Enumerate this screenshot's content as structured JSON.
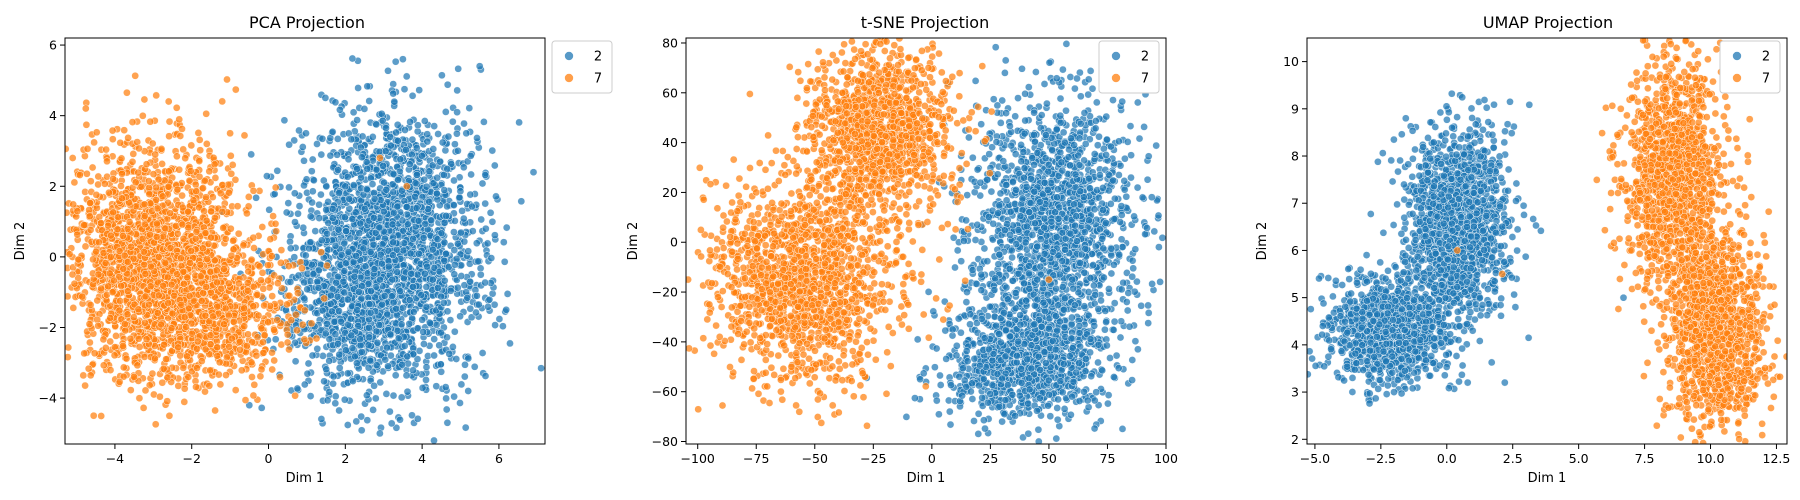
{
  "colors": {
    "series_2": "#1f77b4",
    "series_7": "#ff7f0e"
  },
  "chart_data": [
    {
      "type": "scatter",
      "title": "PCA Projection",
      "xlabel": "Dim 1",
      "ylabel": "Dim 2",
      "xlim": [
        -5.3,
        7.2
      ],
      "ylim": [
        -5.3,
        6.2
      ],
      "xticks": [
        -4,
        -2,
        0,
        2,
        4,
        6
      ],
      "yticks": [
        -4,
        -2,
        0,
        2,
        4,
        6
      ],
      "legend": {
        "position": "outside-top-right",
        "entries": [
          "2",
          "7"
        ]
      },
      "grid": false,
      "series": [
        {
          "name": "2",
          "color": "#1f77b4",
          "approx_count": 5000,
          "clusters": [
            {
              "center": [
                3.2,
                0.2
              ],
              "spread": [
                1.15,
                1.9
              ],
              "weight": 0.85
            },
            {
              "center": [
                1.8,
                -1.5
              ],
              "spread": [
                0.8,
                1.2
              ],
              "weight": 0.15
            }
          ],
          "sample_points": [
            [
              3.5,
              5.6
            ],
            [
              5.5,
              5.4
            ],
            [
              6.9,
              2.4
            ],
            [
              2.9,
              -5.0
            ],
            [
              -0.5,
              -4.2
            ],
            [
              4.4,
              0.5
            ],
            [
              2.0,
              2.0
            ],
            [
              5.2,
              -3.8
            ]
          ]
        },
        {
          "name": "7",
          "color": "#ff7f0e",
          "approx_count": 5000,
          "clusters": [
            {
              "center": [
                -3.0,
                0.0
              ],
              "spread": [
                1.1,
                1.6
              ],
              "weight": 0.75
            },
            {
              "center": [
                -1.3,
                -1.6
              ],
              "spread": [
                0.9,
                1.0
              ],
              "weight": 0.25
            }
          ],
          "sample_points": [
            [
              -5.1,
              2.8
            ],
            [
              -2.6,
              4.4
            ],
            [
              -3.5,
              -3.4
            ],
            [
              0.5,
              -2.2
            ],
            [
              -4.8,
              0.9
            ],
            [
              2.9,
              2.8
            ],
            [
              3.6,
              2.0
            ],
            [
              -1.0,
              3.5
            ]
          ]
        }
      ]
    },
    {
      "type": "scatter",
      "title": "t-SNE Projection",
      "xlabel": "Dim 1",
      "ylabel": "Dim 2",
      "xlim": [
        -105,
        100
      ],
      "ylim": [
        -81,
        82
      ],
      "xticks": [
        -100,
        -75,
        -50,
        -25,
        0,
        25,
        50,
        75,
        100
      ],
      "yticks": [
        -80,
        -60,
        -40,
        -20,
        0,
        20,
        40,
        60,
        80
      ],
      "legend": {
        "position": "top-right",
        "entries": [
          "2",
          "7"
        ]
      },
      "grid": false,
      "series": [
        {
          "name": "2",
          "color": "#1f77b4",
          "approx_count": 5000,
          "clusters": [
            {
              "center": [
                52,
                5
              ],
              "spread": [
                17,
                26
              ],
              "weight": 0.65
            },
            {
              "center": [
                38,
                -48
              ],
              "spread": [
                16,
                12
              ],
              "weight": 0.35
            }
          ],
          "sample_points": [
            [
              90,
              18
            ],
            [
              55,
              48
            ],
            [
              30,
              -72
            ],
            [
              -5,
              -55
            ],
            [
              65,
              -60
            ],
            [
              15,
              -20
            ],
            [
              80,
              -5
            ],
            [
              45,
              -15
            ]
          ]
        },
        {
          "name": "7",
          "color": "#ff7f0e",
          "approx_count": 5000,
          "clusters": [
            {
              "center": [
                -22,
                45
              ],
              "spread": [
                16,
                17
              ],
              "weight": 0.45
            },
            {
              "center": [
                -55,
                -15
              ],
              "spread": [
                20,
                20
              ],
              "weight": 0.55
            }
          ],
          "sample_points": [
            [
              -95,
              -25
            ],
            [
              -30,
              72
            ],
            [
              -10,
              74
            ],
            [
              -60,
              -50
            ],
            [
              5,
              40
            ],
            [
              -75,
              20
            ],
            [
              -45,
              55
            ],
            [
              50,
              -15
            ]
          ]
        }
      ]
    },
    {
      "type": "scatter",
      "title": "UMAP Projection",
      "xlabel": "Dim 1",
      "ylabel": "Dim 2",
      "xlim": [
        -5.3,
        12.9
      ],
      "ylim": [
        1.9,
        10.5
      ],
      "xticks": [
        -5.0,
        -2.5,
        0.0,
        2.5,
        5.0,
        7.5,
        10.0,
        12.5
      ],
      "xtick_labels": [
        "-5.0",
        "-2.5",
        "0.0",
        "2.5",
        "5.0",
        "7.5",
        "10.0",
        "12.5"
      ],
      "yticks": [
        2,
        3,
        4,
        5,
        6,
        7,
        8,
        9,
        10
      ],
      "legend": {
        "position": "top-right",
        "entries": [
          "2",
          "7"
        ]
      },
      "grid": false,
      "series": [
        {
          "name": "2",
          "color": "#1f77b4",
          "approx_count": 5000,
          "clusters": [
            {
              "center": [
                -2.2,
                4.3
              ],
              "spread": [
                1.15,
                0.55
              ],
              "weight": 0.45
            },
            {
              "center": [
                0.4,
                6.6
              ],
              "spread": [
                0.95,
                1.0
              ],
              "weight": 0.55
            }
          ],
          "sample_points": [
            [
              -4.7,
              4.4
            ],
            [
              0.2,
              8.6
            ],
            [
              2.6,
              4.8
            ],
            [
              2.2,
              3.2
            ],
            [
              -2.0,
              3.0
            ],
            [
              1.8,
              6.0
            ],
            [
              -0.8,
              7.8
            ],
            [
              6.7,
              5.0
            ]
          ]
        },
        {
          "name": "7",
          "color": "#ff7f0e",
          "approx_count": 5000,
          "clusters": [
            {
              "center": [
                8.6,
                7.6
              ],
              "spread": [
                0.9,
                1.2
              ],
              "weight": 0.5
            },
            {
              "center": [
                10.2,
                4.3
              ],
              "spread": [
                0.85,
                1.0
              ],
              "weight": 0.5
            }
          ],
          "sample_points": [
            [
              7.8,
              10.1
            ],
            [
              12.4,
              2.9
            ],
            [
              6.6,
              9.0
            ],
            [
              11.3,
              2.5
            ],
            [
              7.0,
              6.0
            ],
            [
              9.8,
              8.2
            ],
            [
              2.1,
              5.5
            ],
            [
              0.4,
              6.0
            ]
          ]
        }
      ]
    }
  ]
}
